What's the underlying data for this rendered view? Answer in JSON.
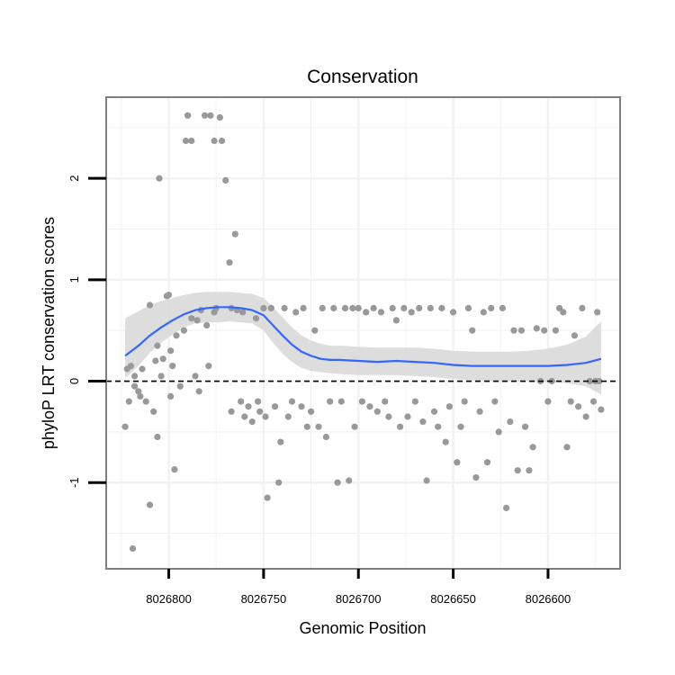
{
  "chart_data": {
    "type": "scatter",
    "title": "Conservation",
    "xlabel": "Genomic Position",
    "ylabel": "phyloP LRT conservation scores",
    "xlim": [
      8026833,
      8026562
    ],
    "ylim": [
      -1.85,
      2.8
    ],
    "x_reversed": true,
    "grid": true,
    "x_ticks": [
      8026800,
      8026750,
      8026700,
      8026650,
      8026600
    ],
    "x_tick_labels": [
      "8026800",
      "8026750",
      "8026700",
      "8026650",
      "8026600"
    ],
    "y_ticks": [
      -1,
      0,
      1,
      2
    ],
    "y_tick_labels": [
      "-1",
      "0",
      "1",
      "2"
    ],
    "reference_line": {
      "y": 0,
      "style": "dashed",
      "color": "#000000"
    },
    "colors": {
      "points": "#999999",
      "smooth": "#3366ff",
      "ribbon": "#d9d9d9",
      "panel_border": "#7f7f7f",
      "grid": "#f2f2f2"
    },
    "points": {
      "x": [
        8026823,
        8026822,
        8026821,
        8026820,
        8026819,
        8026818,
        8026818,
        8026816,
        8026815,
        8026814,
        8026812,
        8026810,
        8026810,
        8026808,
        8026807,
        8026806,
        8026806,
        8026805,
        8026804,
        8026803,
        8026801,
        8026800,
        8026799,
        8026799,
        8026798,
        8026797,
        8026796,
        8026794,
        8026792,
        8026791,
        8026790,
        8026790,
        8026788,
        8026788,
        8026786,
        8026785,
        8026784,
        8026783,
        8026781,
        8026780,
        8026779,
        8026778,
        8026776,
        8026776,
        8026775,
        8026773,
        8026772,
        8026770,
        8026768,
        8026767,
        8026767,
        8026765,
        8026764,
        8026762,
        8026761,
        8026760,
        8026758,
        8026756,
        8026754,
        8026753,
        8026752,
        8026750,
        8026749,
        8026748,
        8026746,
        8026744,
        8026742,
        8026741,
        8026739,
        8026737,
        8026735,
        8026733,
        8026730,
        8026729,
        8026727,
        8026725,
        8026723,
        8026721,
        8026719,
        8026717,
        8026715,
        8026713,
        8026711,
        8026709,
        8026707,
        8026705,
        8026703,
        8026702,
        8026700,
        8026698,
        8026696,
        8026694,
        8026692,
        8026690,
        8026688,
        8026686,
        8026684,
        8026682,
        8026680,
        8026678,
        8026676,
        8026674,
        8026672,
        8026670,
        8026668,
        8026666,
        8026664,
        8026662,
        8026660,
        8026658,
        8026656,
        8026654,
        8026652,
        8026650,
        8026648,
        8026646,
        8026644,
        8026642,
        8026640,
        8026638,
        8026636,
        8026634,
        8026632,
        8026630,
        8026628,
        8026626,
        8026624,
        8026622,
        8026620,
        8026618,
        8026616,
        8026614,
        8026612,
        8026610,
        8026608,
        8026606,
        8026604,
        8026602,
        8026600,
        8026598,
        8026596,
        8026594,
        8026592,
        8026590,
        8026588,
        8026586,
        8026584,
        8026582,
        8026580,
        8026578,
        8026576,
        8026575,
        8026574,
        8026573,
        8026572
      ],
      "y": [
        -0.45,
        0.12,
        -0.2,
        0.15,
        -1.65,
        0.05,
        -0.05,
        -0.1,
        -0.15,
        0.12,
        -0.2,
        0.75,
        -1.22,
        -0.3,
        0.2,
        -0.55,
        0.35,
        2.0,
        0.05,
        0.22,
        0.84,
        0.85,
        -0.15,
        0.3,
        0.15,
        -0.87,
        0.45,
        -0.05,
        0.5,
        2.37,
        2.62,
        2.62,
        2.37,
        0.62,
        0.05,
        0.6,
        -0.1,
        0.7,
        2.62,
        0.55,
        0.15,
        2.62,
        0.68,
        2.37,
        0.72,
        2.6,
        2.37,
        1.98,
        1.17,
        0.72,
        -0.3,
        1.45,
        0.7,
        -0.2,
        0.68,
        -0.35,
        -0.25,
        -0.4,
        0.62,
        -0.2,
        -0.3,
        0.72,
        -0.35,
        -1.15,
        0.72,
        -0.25,
        -1.0,
        -0.6,
        0.72,
        -0.35,
        -0.2,
        0.68,
        -0.25,
        0.72,
        -0.45,
        -0.3,
        0.5,
        -0.45,
        0.72,
        -0.55,
        -0.2,
        0.72,
        -1.0,
        -0.2,
        0.72,
        -0.98,
        0.72,
        -0.45,
        0.72,
        -0.2,
        0.68,
        -0.25,
        0.72,
        -0.3,
        0.68,
        -0.2,
        -0.35,
        0.72,
        0.6,
        -0.45,
        0.72,
        -0.35,
        0.68,
        -0.2,
        0.72,
        -0.4,
        -0.98,
        0.72,
        -0.3,
        -0.45,
        0.72,
        -0.6,
        -0.25,
        0.68,
        -0.8,
        -0.45,
        -0.2,
        0.72,
        0.5,
        -0.95,
        -0.3,
        0.68,
        -0.8,
        0.72,
        -0.2,
        -0.5,
        0.72,
        -1.25,
        -0.4,
        0.5,
        -0.88,
        0.5,
        -0.45,
        -0.88,
        -0.65,
        0.52,
        0.0,
        0.5,
        -0.2,
        0.0,
        0.5,
        0.72,
        0.68,
        -0.65,
        -0.2,
        0.45,
        -0.25,
        0.72,
        -0.35,
        0.0,
        -0.2,
        0.0,
        0.68,
        0.0,
        -0.28
      ]
    },
    "smooth": {
      "x": [
        8026823,
        8026816,
        8026810,
        8026804,
        8026798,
        8026792,
        8026786,
        8026780,
        8026774,
        8026768,
        8026762,
        8026756,
        8026750,
        8026745,
        8026740,
        8026735,
        8026730,
        8026725,
        8026720,
        8026715,
        8026710,
        8026700,
        8026690,
        8026680,
        8026670,
        8026660,
        8026650,
        8026640,
        8026630,
        8026620,
        8026610,
        8026600,
        8026590,
        8026580,
        8026572
      ],
      "y": [
        0.25,
        0.35,
        0.45,
        0.53,
        0.6,
        0.66,
        0.7,
        0.72,
        0.73,
        0.73,
        0.72,
        0.7,
        0.65,
        0.55,
        0.45,
        0.36,
        0.29,
        0.25,
        0.22,
        0.21,
        0.21,
        0.2,
        0.19,
        0.2,
        0.19,
        0.18,
        0.16,
        0.15,
        0.15,
        0.15,
        0.15,
        0.15,
        0.16,
        0.18,
        0.22
      ],
      "ymin": [
        0.03,
        0.15,
        0.28,
        0.38,
        0.46,
        0.53,
        0.57,
        0.58,
        0.58,
        0.59,
        0.58,
        0.57,
        0.5,
        0.38,
        0.27,
        0.19,
        0.13,
        0.1,
        0.09,
        0.08,
        0.07,
        0.06,
        0.06,
        0.06,
        0.05,
        0.04,
        0.02,
        0.01,
        0.0,
        0.0,
        0.0,
        -0.01,
        -0.02,
        -0.05,
        -0.13
      ],
      "ymax": [
        0.62,
        0.69,
        0.75,
        0.79,
        0.82,
        0.85,
        0.87,
        0.88,
        0.88,
        0.88,
        0.87,
        0.86,
        0.82,
        0.73,
        0.63,
        0.53,
        0.45,
        0.4,
        0.37,
        0.35,
        0.35,
        0.34,
        0.33,
        0.33,
        0.33,
        0.32,
        0.3,
        0.29,
        0.29,
        0.29,
        0.3,
        0.32,
        0.36,
        0.44,
        0.59
      ]
    }
  }
}
